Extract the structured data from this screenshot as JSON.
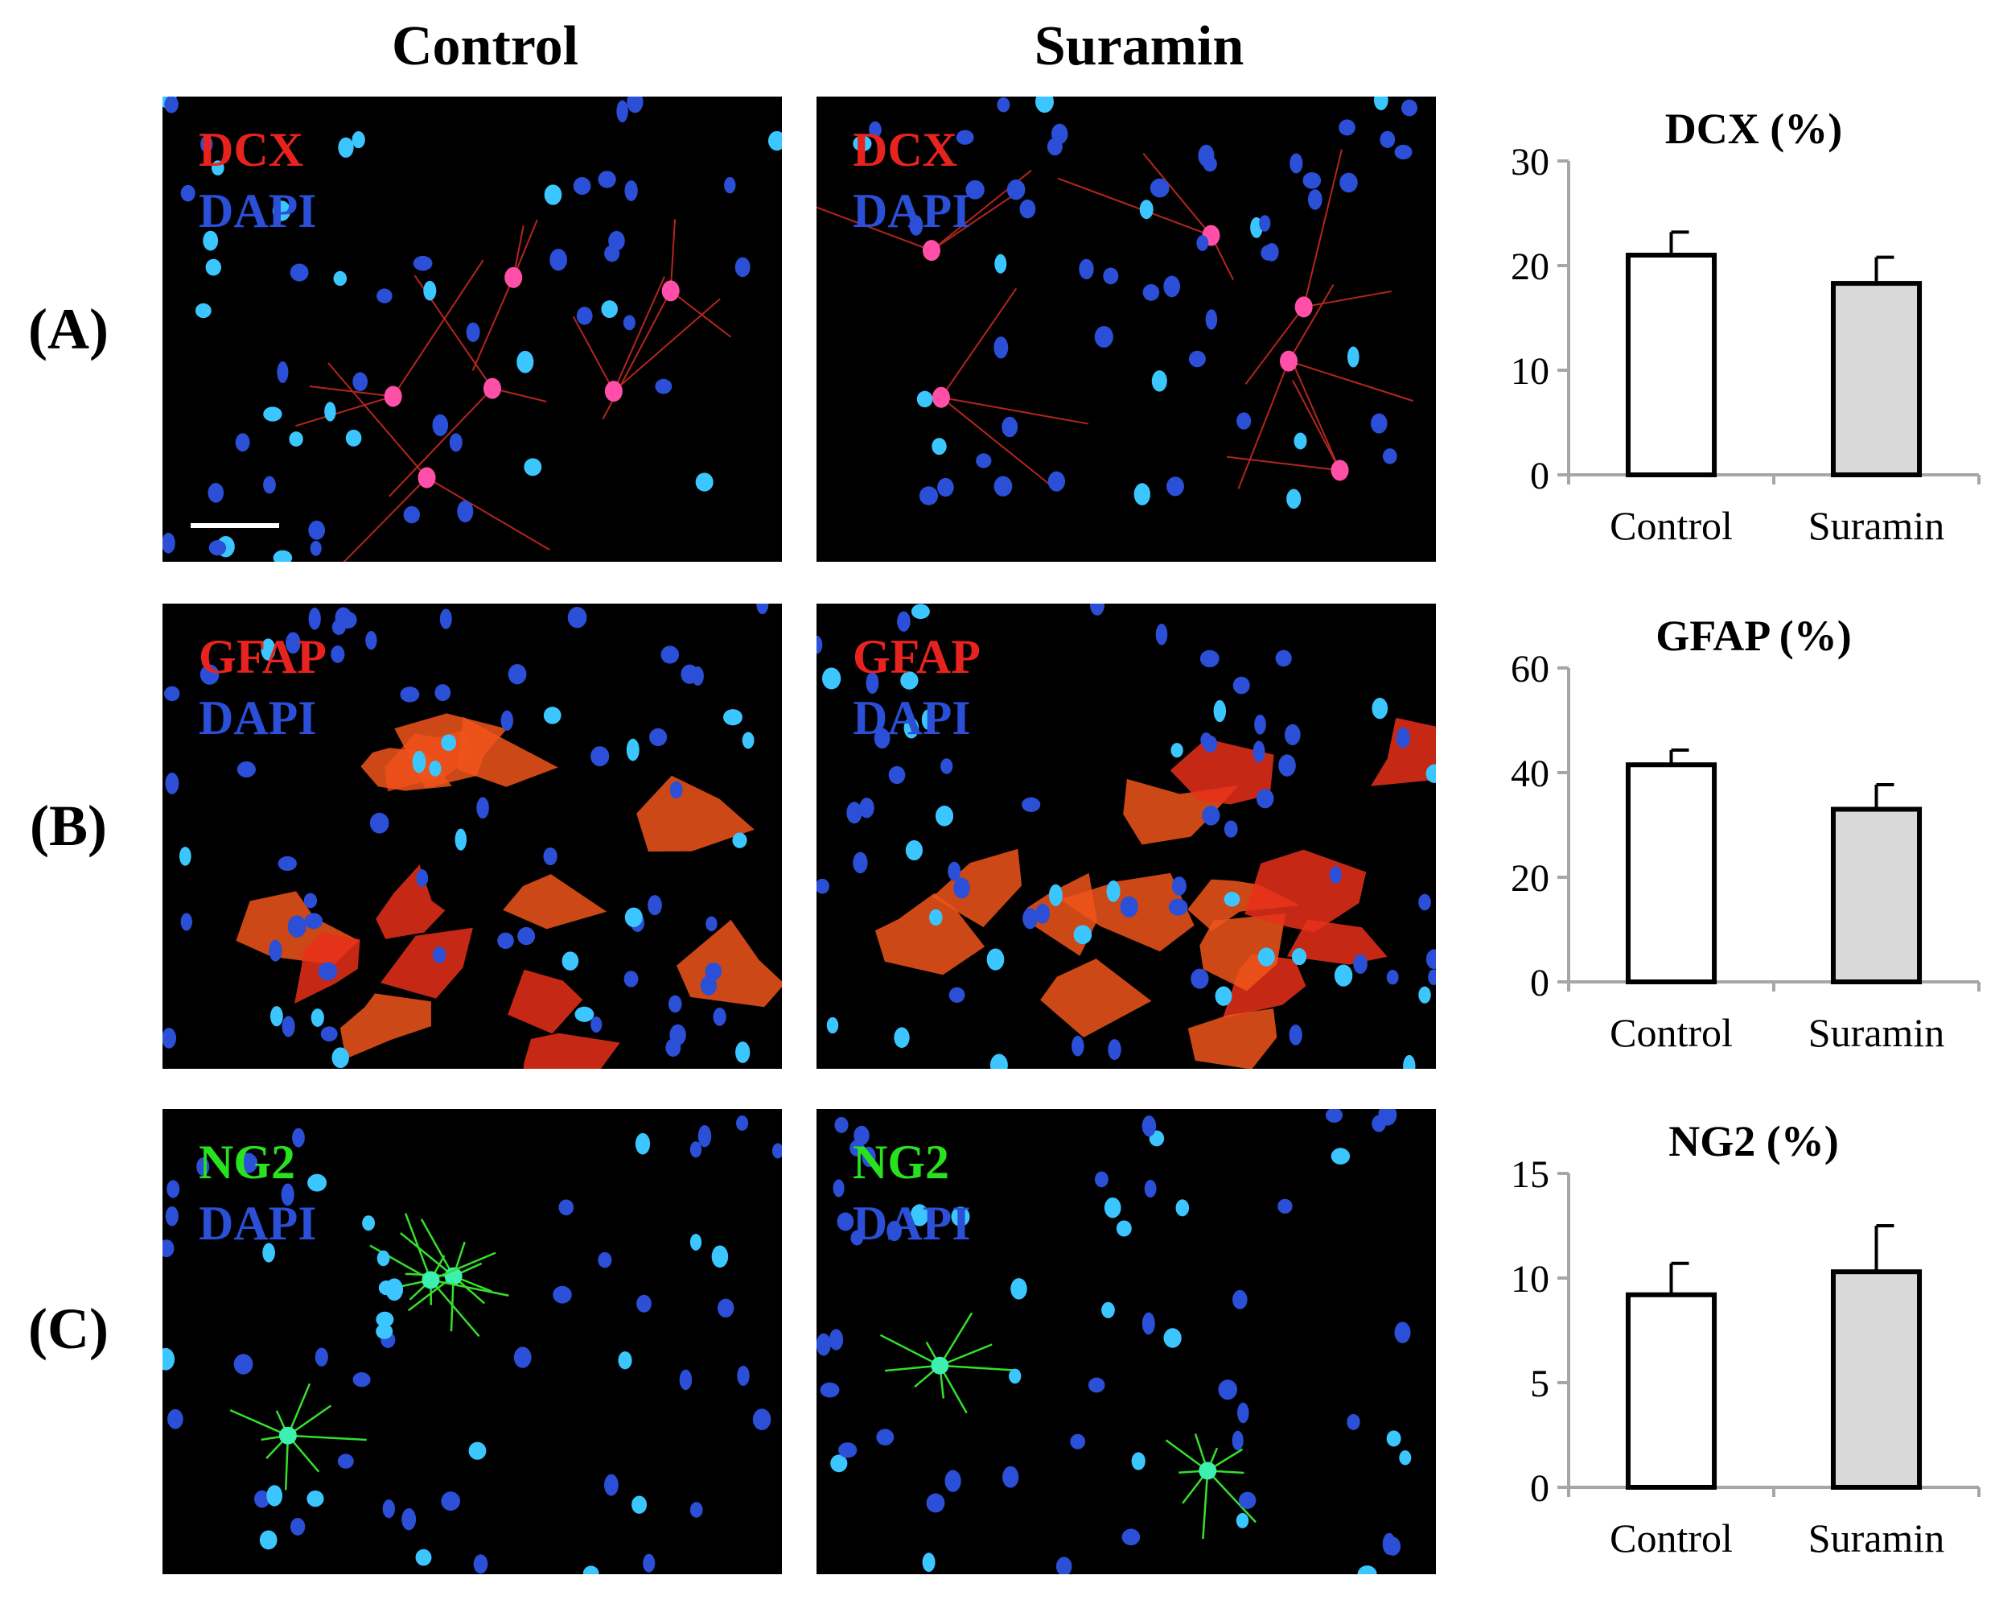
{
  "columns": [
    "Control",
    "Suramin"
  ],
  "rows": [
    {
      "label": "(A)",
      "marker": "DCX",
      "counterstain": "DAPI",
      "marker_color": "#e8231f"
    },
    {
      "label": "(B)",
      "marker": "GFAP",
      "counterstain": "DAPI",
      "marker_color": "#e8231f"
    },
    {
      "label": "(C)",
      "marker": "NG2",
      "counterstain": "DAPI",
      "marker_color": "#29e21f"
    }
  ],
  "colors": {
    "dapi": "#2b4fd6",
    "control_bar": "#ffffff",
    "suramin_bar": "#d9d9d9",
    "axis": "#a6a6a6"
  },
  "chart_data": [
    {
      "type": "bar",
      "title": "DCX (%)",
      "categories": [
        "Control",
        "Suramin"
      ],
      "values": [
        21.0,
        18.3
      ],
      "errors": [
        2.2,
        2.5
      ],
      "ylim": [
        0,
        30
      ],
      "yticks": [
        0,
        10,
        20,
        30
      ],
      "xlabel": "",
      "ylabel": ""
    },
    {
      "type": "bar",
      "title": "GFAP (%)",
      "categories": [
        "Control",
        "Suramin"
      ],
      "values": [
        41.5,
        33.0
      ],
      "errors": [
        2.8,
        4.7
      ],
      "ylim": [
        0,
        60
      ],
      "yticks": [
        0,
        20,
        40,
        60
      ],
      "xlabel": "",
      "ylabel": ""
    },
    {
      "type": "bar",
      "title": "NG2 (%)",
      "categories": [
        "Control",
        "Suramin"
      ],
      "values": [
        9.2,
        10.3
      ],
      "errors": [
        1.5,
        2.2
      ],
      "ylim": [
        0,
        15
      ],
      "yticks": [
        0,
        5,
        10,
        15
      ],
      "xlabel": "",
      "ylabel": ""
    }
  ]
}
